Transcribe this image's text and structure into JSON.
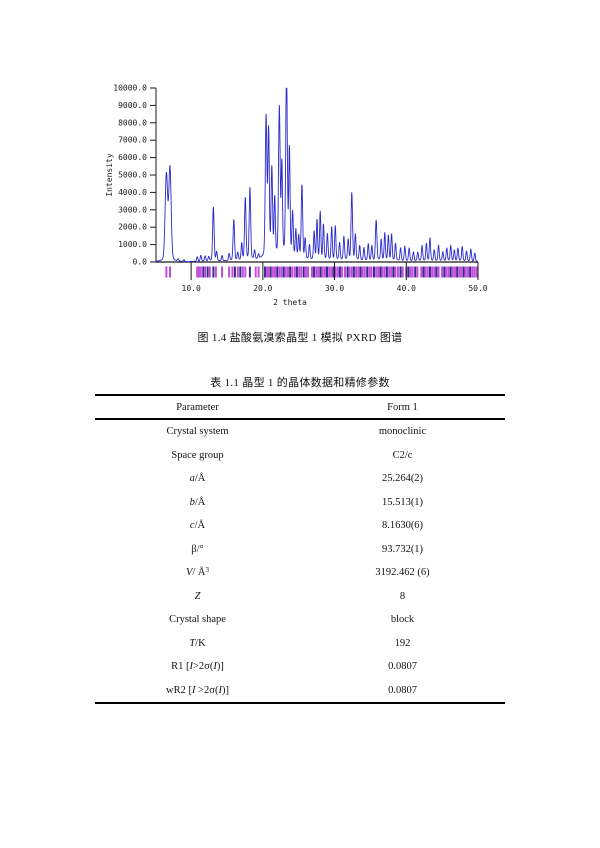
{
  "figure": {
    "caption": "图 1.4  盐酸氨溴索晶型 1 模拟 PXRD 图谱"
  },
  "chart_data": {
    "type": "line",
    "title": "",
    "xlabel": "2 theta",
    "ylabel": "Intensity",
    "xlim": [
      5.1,
      50.0
    ],
    "ylim": [
      0,
      10000
    ],
    "grid": false,
    "legend": "none",
    "x_ticks": [
      10,
      20,
      30,
      40,
      50
    ],
    "x_tick_labels": [
      "10.0",
      "20.0",
      "30.0",
      "40.0",
      "50.0"
    ],
    "y_tick_step": 1000,
    "y_tick_labels": [
      "0.0",
      "1000.0",
      "2000.0",
      "3000.0",
      "4000.0",
      "5000.0",
      "6000.0",
      "7000.0",
      "8000.0",
      "9000.0",
      "10000.0"
    ],
    "curve_color": "#2a2ace",
    "axis_color": "#1a1a1a",
    "peaks": [
      [
        6.55,
        4750,
        0.17
      ],
      [
        7.05,
        5100,
        0.16
      ],
      [
        8.2,
        120
      ],
      [
        9.0,
        100
      ],
      [
        10.85,
        260
      ],
      [
        11.35,
        330
      ],
      [
        11.95,
        280
      ],
      [
        12.45,
        230
      ],
      [
        13.1,
        2950,
        0.1
      ],
      [
        13.55,
        480
      ],
      [
        14.3,
        300
      ],
      [
        15.3,
        400
      ],
      [
        15.95,
        2250,
        0.1
      ],
      [
        16.5,
        420
      ],
      [
        17.05,
        900
      ],
      [
        17.55,
        3400,
        0.1
      ],
      [
        18.2,
        3950,
        0.1
      ],
      [
        18.85,
        480
      ],
      [
        19.4,
        260
      ],
      [
        20.45,
        7700,
        0.11
      ],
      [
        20.8,
        6900,
        0.1
      ],
      [
        21.25,
        4750,
        0.1
      ],
      [
        21.65,
        3100,
        0.09
      ],
      [
        22.3,
        8100,
        0.11
      ],
      [
        22.65,
        5000,
        0.09
      ],
      [
        23.3,
        9950,
        0.11
      ],
      [
        23.7,
        5850,
        0.09
      ],
      [
        24.15,
        2400,
        0.09
      ],
      [
        24.6,
        1500
      ],
      [
        25.0,
        1200
      ],
      [
        25.45,
        4050,
        0.1
      ],
      [
        25.9,
        1100
      ],
      [
        26.5,
        800
      ],
      [
        27.15,
        1550
      ],
      [
        27.55,
        2150
      ],
      [
        28.0,
        2600
      ],
      [
        28.45,
        1900
      ],
      [
        29.0,
        1400
      ],
      [
        29.6,
        1800
      ],
      [
        30.1,
        1850
      ],
      [
        30.7,
        950
      ],
      [
        31.3,
        1300
      ],
      [
        31.9,
        1100
      ],
      [
        32.4,
        3700,
        0.1
      ],
      [
        32.9,
        1400
      ],
      [
        33.5,
        800
      ],
      [
        34.1,
        700
      ],
      [
        34.7,
        900
      ],
      [
        35.2,
        800
      ],
      [
        35.8,
        2200,
        0.1
      ],
      [
        36.5,
        1150
      ],
      [
        37.0,
        1500
      ],
      [
        37.5,
        1350
      ],
      [
        37.95,
        1450
      ],
      [
        38.5,
        950
      ],
      [
        39.2,
        700
      ],
      [
        39.8,
        800
      ],
      [
        40.4,
        700
      ],
      [
        41.0,
        500
      ],
      [
        41.6,
        480
      ],
      [
        42.2,
        850
      ],
      [
        42.8,
        950
      ],
      [
        43.3,
        1250
      ],
      [
        43.9,
        600
      ],
      [
        44.5,
        850
      ],
      [
        45.1,
        500
      ],
      [
        45.65,
        700
      ],
      [
        46.2,
        850
      ],
      [
        46.7,
        600
      ],
      [
        47.2,
        700
      ],
      [
        47.8,
        800
      ],
      [
        48.4,
        550
      ],
      [
        49.0,
        650
      ],
      [
        49.55,
        450
      ]
    ],
    "reflection_ticks": {
      "light_color": "#c050dd",
      "dark_color": "#3a2a8a",
      "positions": [
        [
          6.55,
          0
        ],
        [
          7.05,
          0
        ],
        [
          10.85,
          0
        ],
        [
          11.1,
          0
        ],
        [
          11.35,
          0
        ],
        [
          11.7,
          1
        ],
        [
          11.95,
          0
        ],
        [
          12.3,
          1
        ],
        [
          12.6,
          0
        ],
        [
          13.1,
          1
        ],
        [
          13.45,
          0
        ],
        [
          14.3,
          0
        ],
        [
          15.3,
          0
        ],
        [
          15.75,
          0
        ],
        [
          16.1,
          1
        ],
        [
          16.5,
          0
        ],
        [
          16.85,
          1
        ],
        [
          17.2,
          0
        ],
        [
          17.55,
          0
        ],
        [
          18.2,
          1
        ],
        [
          19.0,
          0
        ],
        [
          19.4,
          0
        ],
        [
          20.3,
          1
        ],
        [
          20.55,
          0
        ],
        [
          20.8,
          0
        ],
        [
          21.1,
          1
        ],
        [
          21.4,
          0
        ],
        [
          21.7,
          0
        ],
        [
          22.0,
          1
        ],
        [
          22.3,
          0
        ],
        [
          22.6,
          0
        ],
        [
          22.9,
          1
        ],
        [
          23.2,
          0
        ],
        [
          23.5,
          0
        ],
        [
          23.8,
          1
        ],
        [
          24.1,
          0
        ],
        [
          24.45,
          0
        ],
        [
          24.75,
          1
        ],
        [
          25.05,
          0
        ],
        [
          25.35,
          0
        ],
        [
          25.7,
          1
        ],
        [
          26.0,
          0
        ],
        [
          26.3,
          0
        ],
        [
          26.85,
          0
        ],
        [
          27.15,
          1
        ],
        [
          27.45,
          0
        ],
        [
          27.75,
          0
        ],
        [
          28.05,
          1
        ],
        [
          28.35,
          0
        ],
        [
          28.65,
          0
        ],
        [
          28.95,
          1
        ],
        [
          29.25,
          0
        ],
        [
          29.55,
          0
        ],
        [
          29.85,
          1
        ],
        [
          30.15,
          0
        ],
        [
          30.45,
          0
        ],
        [
          30.75,
          1
        ],
        [
          31.05,
          0
        ],
        [
          31.45,
          0
        ],
        [
          31.8,
          1
        ],
        [
          32.1,
          0
        ],
        [
          32.4,
          0
        ],
        [
          32.7,
          1
        ],
        [
          33.0,
          0
        ],
        [
          33.3,
          0
        ],
        [
          33.6,
          1
        ],
        [
          33.9,
          0
        ],
        [
          34.2,
          0
        ],
        [
          34.55,
          1
        ],
        [
          34.85,
          0
        ],
        [
          35.15,
          0
        ],
        [
          35.5,
          1
        ],
        [
          35.8,
          0
        ],
        [
          36.1,
          0
        ],
        [
          36.4,
          1
        ],
        [
          36.7,
          0
        ],
        [
          37.0,
          0
        ],
        [
          37.3,
          1
        ],
        [
          37.6,
          0
        ],
        [
          37.9,
          0
        ],
        [
          38.2,
          1
        ],
        [
          38.5,
          0
        ],
        [
          38.85,
          0
        ],
        [
          39.2,
          1
        ],
        [
          39.5,
          0
        ],
        [
          40.0,
          0
        ],
        [
          40.3,
          1
        ],
        [
          40.6,
          0
        ],
        [
          40.9,
          0
        ],
        [
          41.25,
          1
        ],
        [
          41.55,
          0
        ],
        [
          42.1,
          0
        ],
        [
          42.4,
          1
        ],
        [
          42.7,
          0
        ],
        [
          43.0,
          0
        ],
        [
          43.3,
          1
        ],
        [
          43.6,
          0
        ],
        [
          43.9,
          0
        ],
        [
          44.2,
          1
        ],
        [
          44.5,
          0
        ],
        [
          45.0,
          0
        ],
        [
          45.3,
          1
        ],
        [
          45.6,
          0
        ],
        [
          45.9,
          0
        ],
        [
          46.2,
          1
        ],
        [
          46.5,
          0
        ],
        [
          46.8,
          0
        ],
        [
          47.1,
          1
        ],
        [
          47.4,
          0
        ],
        [
          47.7,
          0
        ],
        [
          48.0,
          1
        ],
        [
          48.3,
          0
        ],
        [
          48.6,
          0
        ],
        [
          48.9,
          1
        ],
        [
          49.2,
          0
        ],
        [
          49.5,
          0
        ],
        [
          49.8,
          0
        ]
      ]
    }
  },
  "table": {
    "title": "表 1.1  晶型 1 的晶体数据和精修参数",
    "columns": [
      "Parameter",
      "Form 1"
    ],
    "rows": [
      {
        "param": [
          {
            "t": "Crystal system"
          }
        ],
        "value": "monoclinic"
      },
      {
        "param": [
          {
            "t": "Space group"
          }
        ],
        "value": "C2/c"
      },
      {
        "param": [
          {
            "t": "a",
            "i": true
          },
          {
            "t": "/Å"
          }
        ],
        "value": "25.264(2)"
      },
      {
        "param": [
          {
            "t": "b",
            "i": true
          },
          {
            "t": "/Å"
          }
        ],
        "value": "15.513(1)"
      },
      {
        "param": [
          {
            "t": "c",
            "i": true
          },
          {
            "t": "/Å"
          }
        ],
        "value": "8.1630(6)"
      },
      {
        "param": [
          {
            "t": "β/°"
          }
        ],
        "value": "93.732(1)"
      },
      {
        "param": [
          {
            "t": "V",
            "i": true
          },
          {
            "t": "/ Å"
          },
          {
            "t": "3",
            "sup": true
          }
        ],
        "value": "3192.462 (6)"
      },
      {
        "param": [
          {
            "t": "Z",
            "i": true
          }
        ],
        "value": "8"
      },
      {
        "param": [
          {
            "t": "Crystal shape"
          }
        ],
        "value": "block"
      },
      {
        "param": [
          {
            "t": "T",
            "i": true
          },
          {
            "t": "/K"
          }
        ],
        "value": "192"
      },
      {
        "param": [
          {
            "t": "R1 ["
          },
          {
            "t": "I",
            "i": true
          },
          {
            "t": ">2σ("
          },
          {
            "t": "I",
            "i": true
          },
          {
            "t": ")]"
          }
        ],
        "value": "0.0807"
      },
      {
        "param": [
          {
            "t": "wR2 ["
          },
          {
            "t": "I",
            "i": true
          },
          {
            "t": " >2σ("
          },
          {
            "t": "I",
            "i": true
          },
          {
            "t": ")]"
          }
        ],
        "value": "0.0807"
      }
    ]
  }
}
